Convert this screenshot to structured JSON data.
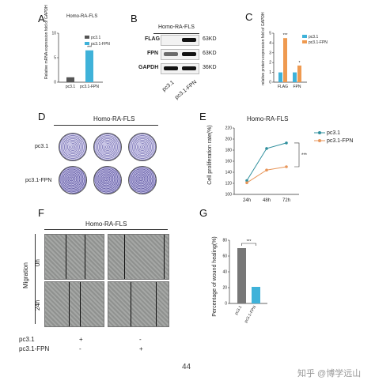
{
  "panels": {
    "A": {
      "letter": "A",
      "title": "Homo-RA-FLS",
      "ylabel": "Relative mRNA expression fold of GAPDH",
      "legend": [
        "pc3.1",
        "pc3.1-FPN"
      ],
      "significance": "***",
      "colors": {
        "pc3.1": "#555555",
        "pc3.1-FPN": "#3fb2d9"
      }
    },
    "B": {
      "letter": "B",
      "title": "Homo-RA-FLS",
      "rows": [
        {
          "name": "FLAG",
          "size": "63KD"
        },
        {
          "name": "FPN",
          "size": "63KD"
        },
        {
          "name": "GAPDH",
          "size": "36KD"
        }
      ],
      "lanes": [
        "pc3.1",
        "pc3.1-FPN"
      ]
    },
    "C": {
      "letter": "C",
      "ylabel": "relative protein expression fold of GAPDH",
      "legend": [
        "pc3.1",
        "pc3.1-FPN"
      ],
      "significance": [
        "***",
        "*"
      ],
      "colors": {
        "pc3.1": "#3fb2d9",
        "pc3.1-FPN": "#ef9a50"
      }
    },
    "D": {
      "letter": "D",
      "title": "Homo-RA-FLS",
      "rows": [
        "pc3.1",
        "pc3.1-FPN"
      ]
    },
    "E": {
      "letter": "E",
      "title": "Homo-RA-FLS",
      "ylabel": "Cell proliferation rate(%)",
      "significance": "***",
      "legend": [
        "pc3.1",
        "pc3.1-FPN"
      ]
    },
    "F": {
      "letter": "F",
      "title": "Homo-RA-FLS",
      "ylabel": "Migration",
      "row_labels": [
        "0h",
        "24h"
      ],
      "conditions": [
        {
          "label": "pc3.1",
          "marks": [
            "+",
            "-"
          ]
        },
        {
          "label": "pc3.1-FPN",
          "marks": [
            "-",
            "+"
          ]
        }
      ]
    },
    "G": {
      "letter": "G",
      "ylabel": "Percentage of wound healing(%)",
      "significance": "***"
    }
  },
  "footer": {
    "page_number": "44",
    "watermark": "知乎 @博学远山"
  },
  "chart_data": [
    {
      "panel": "A",
      "type": "bar",
      "title": "Homo-RA-FLS",
      "categories": [
        "pc3.1",
        "pc3.1-FPN"
      ],
      "values": [
        1,
        6.5
      ],
      "ylabel": "Relative mRNA expression fold of GAPDH",
      "ylim": [
        0,
        10
      ],
      "yticks": [
        0,
        5,
        10
      ]
    },
    {
      "panel": "C",
      "type": "bar",
      "categories": [
        "FLAG",
        "FPN"
      ],
      "series": [
        {
          "name": "pc3.1",
          "values": [
            1,
            1
          ]
        },
        {
          "name": "pc3.1-FPN",
          "values": [
            4.5,
            1.7
          ]
        }
      ],
      "ylabel": "relative protein expression fold of GAPDH",
      "ylim": [
        0,
        5
      ],
      "yticks": [
        0,
        1,
        2,
        3,
        4,
        5
      ]
    },
    {
      "panel": "E",
      "type": "line",
      "title": "Homo-RA-FLS",
      "x": [
        "24h",
        "48h",
        "72h"
      ],
      "series": [
        {
          "name": "pc3.1",
          "values": [
            125,
            183,
            193
          ],
          "color": "#2f8f9d"
        },
        {
          "name": "pc3.1-FPN",
          "values": [
            121,
            144,
            150
          ],
          "color": "#e8965a"
        }
      ],
      "ylabel": "Cell proliferation rate(%)",
      "ylim": [
        100,
        220
      ],
      "yticks": [
        100,
        120,
        140,
        160,
        180,
        200,
        220
      ]
    },
    {
      "panel": "G",
      "type": "bar",
      "categories": [
        "pc3.1",
        "pc3.1-FPN"
      ],
      "values": [
        70,
        21
      ],
      "colors": [
        "#777777",
        "#3fb2d9"
      ],
      "ylabel": "Percentage of wound healing(%)",
      "ylim": [
        0,
        80
      ],
      "yticks": [
        0,
        20,
        40,
        60,
        80
      ]
    }
  ]
}
